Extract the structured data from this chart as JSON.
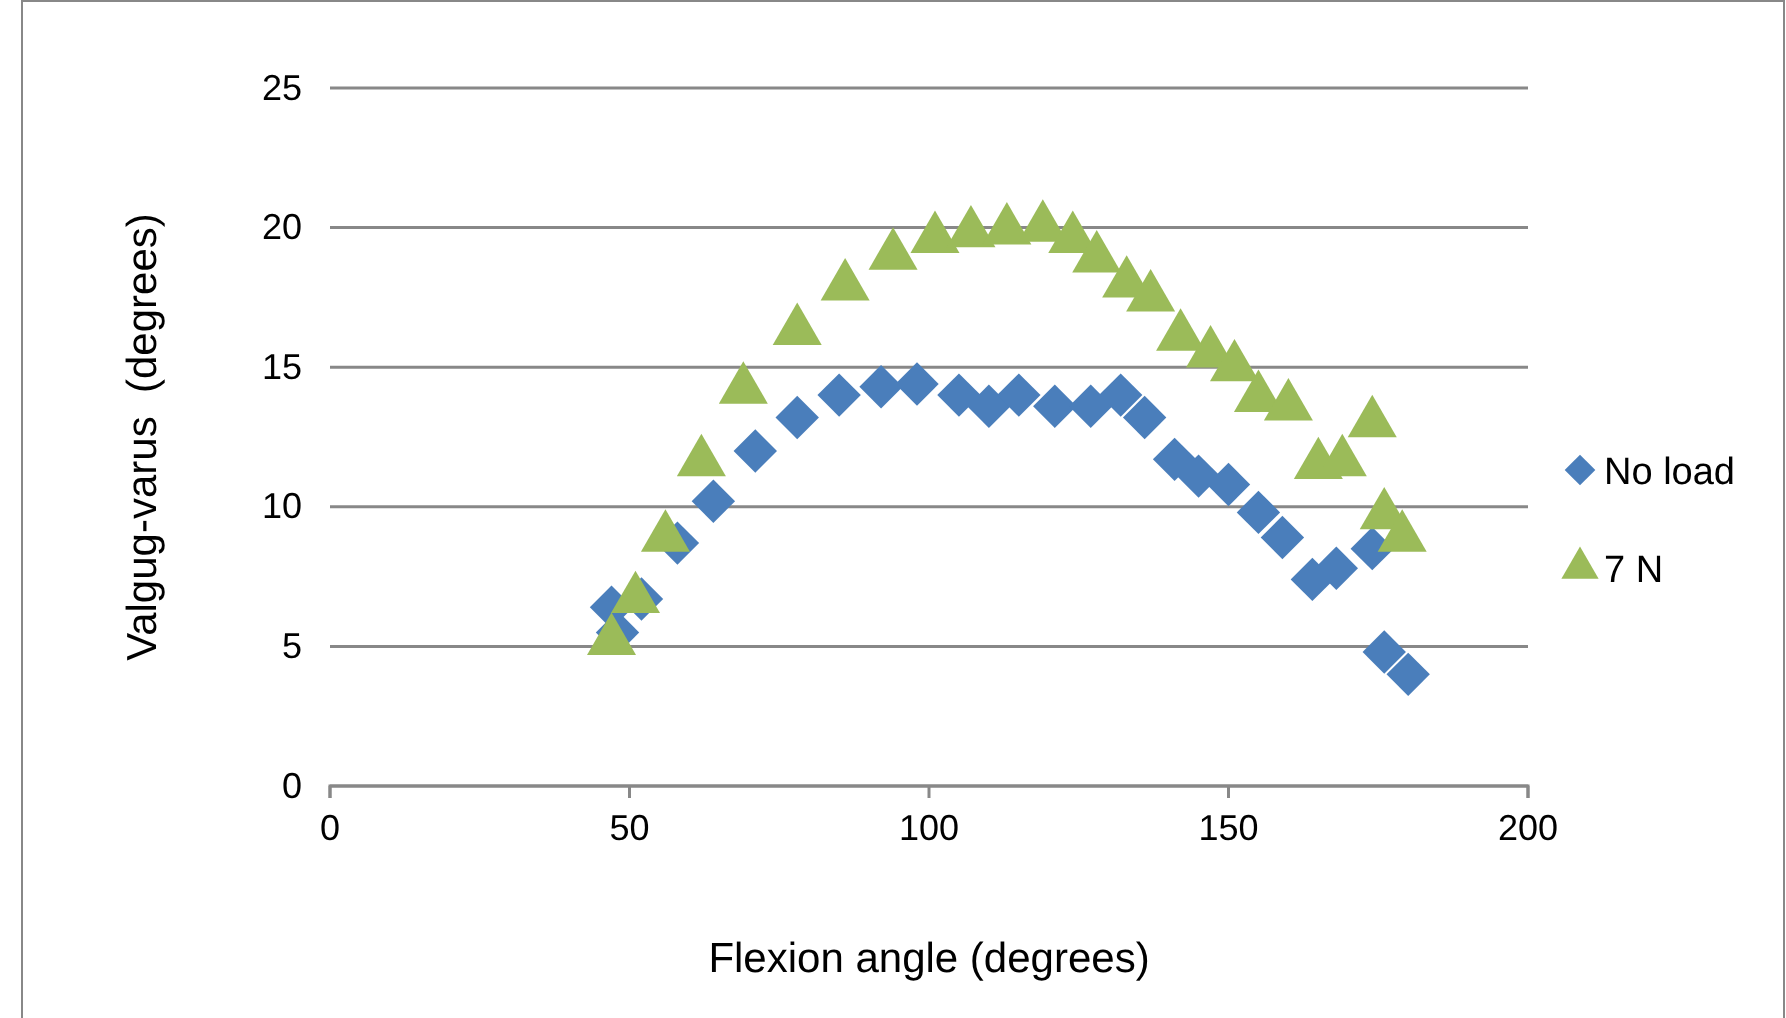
{
  "chart_data": {
    "type": "scatter",
    "xlabel": "Flexion angle (degrees)",
    "ylabel": "Valgug-varus  (degrees)",
    "xlim": [
      0,
      200
    ],
    "xticks": [
      0,
      50,
      100,
      150,
      200
    ],
    "ylim": [
      0,
      25
    ],
    "yticks": [
      0,
      5,
      10,
      15,
      20,
      25
    ],
    "grid": "y",
    "legend": "right",
    "series": [
      {
        "name": "No load",
        "color": "#4a7ebb",
        "marker": "diamond",
        "x": [
          47,
          48,
          52,
          58,
          64,
          71,
          78,
          85,
          92,
          98,
          105,
          110,
          115,
          121,
          127,
          132,
          136,
          141,
          145,
          150,
          155,
          159,
          164,
          168,
          174,
          176,
          180
        ],
        "values": [
          6.4,
          5.5,
          6.7,
          8.7,
          10.2,
          12.0,
          13.2,
          14.0,
          14.3,
          14.4,
          14.0,
          13.6,
          14.0,
          13.6,
          13.6,
          14.0,
          13.2,
          11.7,
          11.1,
          10.8,
          9.8,
          8.9,
          7.4,
          7.8,
          8.5,
          4.8,
          4.0
        ]
      },
      {
        "name": "7 N",
        "color": "#9bbb59",
        "marker": "triangle",
        "x": [
          47,
          51,
          56,
          62,
          69,
          78,
          86,
          94,
          101,
          107,
          113,
          119,
          124,
          128,
          133,
          137,
          142,
          147,
          151,
          155,
          160,
          165,
          169,
          174,
          176,
          179
        ],
        "values": [
          5.2,
          6.7,
          8.9,
          11.6,
          14.2,
          16.3,
          17.9,
          19.0,
          19.6,
          19.8,
          19.9,
          20.0,
          19.6,
          18.9,
          18.0,
          17.5,
          16.1,
          15.5,
          15.0,
          13.9,
          13.6,
          11.5,
          11.6,
          13.0,
          9.7,
          8.9
        ]
      }
    ]
  }
}
